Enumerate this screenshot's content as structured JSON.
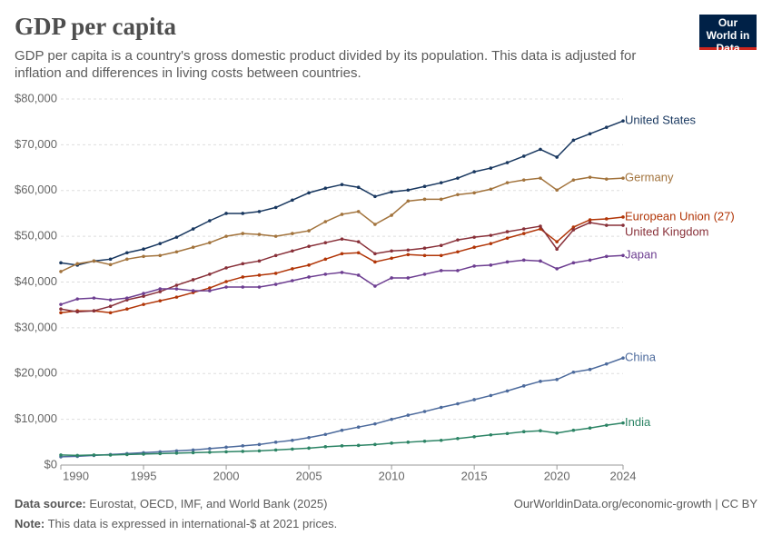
{
  "chart_data": {
    "type": "line",
    "title": "GDP per capita",
    "subtitle": "GDP per capita is a country's gross domestic product divided by its population. This data is adjusted for inflation and differences in living costs between countries.",
    "logo": "Our World in Data",
    "source_label": "Data source:",
    "source": "Eurostat, OECD, IMF, and World Bank (2025)",
    "note_label": "Note:",
    "note": "This data is expressed in international-$ at 2021 prices.",
    "url": "OurWorldinData.org/economic-growth | CC BY",
    "x": [
      1990,
      1991,
      1992,
      1993,
      1994,
      1995,
      1996,
      1997,
      1998,
      1999,
      2000,
      2001,
      2002,
      2003,
      2004,
      2005,
      2006,
      2007,
      2008,
      2009,
      2010,
      2011,
      2012,
      2013,
      2014,
      2015,
      2016,
      2017,
      2018,
      2019,
      2020,
      2021,
      2022,
      2023,
      2024
    ],
    "xlim": [
      1990,
      2024
    ],
    "xticks": [
      1990,
      1995,
      2000,
      2005,
      2010,
      2015,
      2020,
      2024
    ],
    "ylim": [
      0,
      80000
    ],
    "yticks": [
      {
        "value": 0,
        "label": "$0"
      },
      {
        "value": 10000,
        "label": "$10,000"
      },
      {
        "value": 20000,
        "label": "$20,000"
      },
      {
        "value": 30000,
        "label": "$30,000"
      },
      {
        "value": 40000,
        "label": "$40,000"
      },
      {
        "value": 50000,
        "label": "$50,000"
      },
      {
        "value": 60000,
        "label": "$60,000"
      },
      {
        "value": 70000,
        "label": "$70,000"
      },
      {
        "value": 80000,
        "label": "$80,000"
      }
    ],
    "grid": true,
    "series": [
      {
        "name": "United States",
        "color": "#18375f",
        "values": [
          44200,
          43700,
          44600,
          45000,
          46400,
          47200,
          48400,
          49800,
          51600,
          53400,
          55000,
          55000,
          55400,
          56300,
          57900,
          59500,
          60500,
          61300,
          60700,
          58700,
          59700,
          60100,
          60900,
          61700,
          62700,
          64100,
          64900,
          66100,
          67500,
          69000,
          67300,
          71000,
          72400,
          73800,
          75200
        ]
      },
      {
        "name": "Germany",
        "color": "#a2733c",
        "values": [
          42300,
          44000,
          44600,
          43800,
          45000,
          45600,
          45800,
          46600,
          47600,
          48600,
          50000,
          50600,
          50400,
          50000,
          50600,
          51200,
          53200,
          54800,
          55400,
          52600,
          54600,
          57700,
          58100,
          58100,
          59100,
          59500,
          60300,
          61700,
          62300,
          62700,
          60100,
          62300,
          62900,
          62500,
          62700
        ]
      },
      {
        "name": "European Union (27)",
        "color": "#b13507",
        "values": [
          33300,
          33700,
          33700,
          33300,
          34100,
          35100,
          35900,
          36700,
          37700,
          38700,
          40100,
          41100,
          41500,
          41900,
          42900,
          43700,
          45000,
          46200,
          46400,
          44400,
          45200,
          46000,
          45800,
          45800,
          46600,
          47600,
          48400,
          49600,
          50600,
          51600,
          48800,
          52000,
          53600,
          53800,
          54200
        ]
      },
      {
        "name": "United Kingdom",
        "color": "#883039",
        "values": [
          34100,
          33500,
          33700,
          34700,
          36100,
          36900,
          37900,
          39300,
          40500,
          41700,
          43100,
          44000,
          44600,
          45800,
          46800,
          47800,
          48600,
          49400,
          48800,
          46200,
          46800,
          47000,
          47400,
          48000,
          49200,
          49800,
          50200,
          51000,
          51600,
          52200,
          47200,
          51400,
          53000,
          52400,
          52400
        ]
      },
      {
        "name": "Japan",
        "color": "#6d3e91",
        "values": [
          35100,
          36300,
          36500,
          36100,
          36500,
          37500,
          38500,
          38500,
          38100,
          38100,
          38900,
          38900,
          38900,
          39500,
          40300,
          41100,
          41700,
          42100,
          41500,
          39100,
          40900,
          40900,
          41700,
          42500,
          42500,
          43500,
          43700,
          44400,
          44800,
          44600,
          42900,
          44200,
          44800,
          45600,
          45800
        ]
      },
      {
        "name": "China",
        "color": "#4c6a9c",
        "values": [
          1800,
          1900,
          2100,
          2300,
          2500,
          2700,
          2900,
          3100,
          3300,
          3600,
          3900,
          4200,
          4500,
          5000,
          5400,
          6000,
          6700,
          7600,
          8300,
          9000,
          10000,
          10900,
          11700,
          12600,
          13400,
          14300,
          15200,
          16200,
          17300,
          18300,
          18700,
          20300,
          20900,
          22100,
          23400
        ]
      },
      {
        "name": "India",
        "color": "#2c8465",
        "values": [
          2200,
          2100,
          2200,
          2200,
          2300,
          2400,
          2500,
          2600,
          2700,
          2800,
          2900,
          3000,
          3100,
          3300,
          3500,
          3700,
          4000,
          4200,
          4300,
          4500,
          4800,
          5000,
          5200,
          5400,
          5800,
          6200,
          6600,
          6900,
          7300,
          7500,
          7000,
          7600,
          8100,
          8700,
          9200
        ]
      }
    ]
  }
}
